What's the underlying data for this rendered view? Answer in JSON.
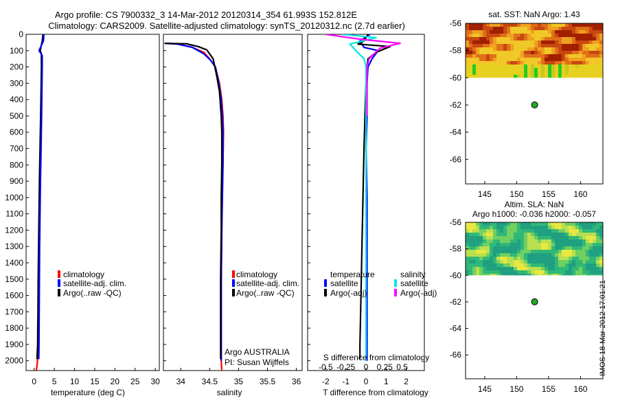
{
  "title": {
    "line1": "Argo profile: CS 7900332_3 14-Mar-2012 20120314_354 61.993S 152.812E",
    "line2": "Climatology: CARS2009. Satellite-adjusted climatology: synTS_20120312.nc (2.7d earlier)"
  },
  "depth_axis": {
    "ticks": [
      0,
      100,
      200,
      300,
      400,
      500,
      600,
      700,
      800,
      900,
      1000,
      1100,
      1200,
      1300,
      1400,
      1500,
      1600,
      1700,
      1800,
      1900,
      2000
    ],
    "ylim": [
      2060,
      0
    ]
  },
  "colors": {
    "climatology": "#ff0000",
    "satellite": "#0000ff",
    "argo": "#000000",
    "satellite_salinity": "#00e5e5",
    "argo_salinity": "#ff00ff",
    "map_marker": "#22aa22"
  },
  "chart_data": [
    {
      "type": "line",
      "name": "temperature",
      "xlabel": "temperature (deg C)",
      "xlim": [
        -2,
        31
      ],
      "xticks": [
        0,
        5,
        10,
        15,
        20,
        25,
        30
      ],
      "legend": [
        "climatology",
        "satellite-adj. clim.",
        "Argo(..raw -QC)"
      ],
      "series": [
        {
          "name": "climatology",
          "color": "#ff0000",
          "x": [
            1.0,
            0.9,
            0.8,
            0.75,
            0.7,
            0.65,
            0.6,
            0.55,
            0.5
          ],
          "y": [
            1950,
            1980,
            2000,
            2020,
            2030,
            2040,
            2050,
            2055,
            2060
          ]
        },
        {
          "name": "Argo(..raw -QC)",
          "color": "#000000",
          "x": [
            2.2,
            2.0,
            1.5,
            1.8,
            1.8,
            1.75,
            1.6,
            1.45,
            1.3,
            1.2,
            1.1,
            1.0,
            0.95,
            0.9,
            0.85,
            0.7
          ],
          "y": [
            0,
            40,
            100,
            120,
            200,
            300,
            500,
            700,
            900,
            1100,
            1300,
            1500,
            1700,
            1800,
            1900,
            1990
          ]
        },
        {
          "name": "satellite-adj. clim.",
          "color": "#0000ff",
          "x": [
            2.4,
            2.3,
            1.2,
            2.0,
            2.0,
            1.95,
            1.85,
            1.7,
            1.55,
            1.45,
            1.35,
            1.3,
            1.25,
            1.2,
            1.15
          ],
          "y": [
            0,
            40,
            100,
            130,
            200,
            300,
            500,
            700,
            900,
            1100,
            1300,
            1500,
            1700,
            1900,
            1990
          ]
        }
      ]
    },
    {
      "type": "line",
      "name": "salinity",
      "xlabel": "salinity",
      "xlim": [
        33.7,
        36.1
      ],
      "xticks": [
        34,
        34.5,
        35,
        35.5,
        36
      ],
      "legend": [
        "climatology",
        "satellite-adj. clim.",
        "Argo(..raw -QC)"
      ],
      "annotations": [
        "Argo AUSTRALIA",
        "PI: Susan Wijffels"
      ],
      "series": [
        {
          "name": "climatology",
          "color": "#ff0000",
          "x": [
            33.75,
            33.95,
            34.2,
            34.4,
            34.5,
            34.6,
            34.67,
            34.71,
            34.73,
            34.74,
            34.73,
            34.72,
            34.71,
            34.7,
            34.7,
            34.7,
            34.71
          ],
          "y": [
            55,
            60,
            80,
            110,
            150,
            200,
            300,
            400,
            500,
            600,
            800,
            1000,
            1200,
            1500,
            1800,
            2000,
            2060
          ]
        },
        {
          "name": "satellite-adj. clim.",
          "color": "#0000ff",
          "x": [
            33.72,
            33.95,
            34.2,
            34.4,
            34.52,
            34.6,
            34.66,
            34.7,
            34.72,
            34.73,
            34.73,
            34.72,
            34.71,
            34.7,
            34.7,
            34.7
          ],
          "y": [
            55,
            60,
            80,
            120,
            160,
            200,
            300,
            400,
            500,
            600,
            800,
            1000,
            1200,
            1500,
            1800,
            2000
          ]
        },
        {
          "name": "Argo(..raw -QC)",
          "color": "#000000",
          "x": [
            33.72,
            34.1,
            34.18,
            34.3,
            34.45,
            34.56,
            34.62,
            34.67,
            34.7,
            34.71,
            34.71,
            34.7,
            34.7,
            34.69,
            34.69
          ],
          "y": [
            55,
            58,
            65,
            75,
            95,
            150,
            250,
            350,
            500,
            600,
            800,
            1000,
            1200,
            1500,
            1990
          ]
        }
      ]
    },
    {
      "type": "line",
      "name": "difference",
      "xlabel": "T difference from climatology",
      "secondary_xlabel": "S difference from climatology",
      "xlim": [
        -2.9,
        2.9
      ],
      "xticks": [
        -2,
        -1,
        0,
        1,
        2
      ],
      "xticks_salinity": [
        "-0.5",
        "-0.25",
        "0",
        "0.25",
        "0.5"
      ],
      "legend_titles": [
        "temperature",
        "salinity"
      ],
      "legend": [
        "satellite",
        "Argo(-adj)",
        "satellite",
        "Argo(-adj)"
      ],
      "series": [
        {
          "name": "temperature satellite",
          "color": "#0000ff",
          "x": [
            0.2,
            -0.3,
            -0.1,
            0.6,
            0.3,
            0.1,
            0.05,
            0.05,
            0.05,
            0.0,
            0.05,
            0.05,
            0.05,
            0.05
          ],
          "y": [
            0,
            40,
            80,
            100,
            150,
            200,
            300,
            400,
            500,
            700,
            1000,
            1500,
            1900,
            2000
          ]
        },
        {
          "name": "temperature Argo(-adj)",
          "color": "#000000",
          "x": [
            0.1,
            -0.1,
            -0.4,
            1.2,
            0.5,
            0.1,
            0.05,
            0.0,
            -0.05,
            -0.1,
            -0.15,
            -0.2,
            -0.25,
            -0.3,
            -0.3
          ],
          "y": [
            0,
            40,
            60,
            75,
            110,
            150,
            200,
            300,
            500,
            700,
            1000,
            1300,
            1600,
            1900,
            1990
          ]
        },
        {
          "name": "salinity satellite",
          "color": "#00e5e5",
          "x": [
            -1.2,
            0.5,
            -0.8,
            -0.5,
            -0.1,
            0.0,
            0.0,
            0.0,
            0.0,
            0.0
          ],
          "y": [
            0,
            20,
            60,
            100,
            150,
            200,
            500,
            1000,
            1500,
            2000
          ]
        },
        {
          "name": "salinity Argo(-adj)",
          "color": "#ff00ff",
          "x": [
            -2.0,
            -0.3,
            1.7,
            0.7,
            0.4,
            0.15,
            0.05,
            0.05,
            0.05
          ],
          "y": [
            0,
            30,
            55,
            85,
            120,
            150,
            200,
            300,
            500
          ]
        }
      ]
    },
    {
      "type": "heatmap",
      "name": "sst-map",
      "title": "sat. SST: NaN Argo: 1.43",
      "xlim": [
        142,
        163.5
      ],
      "ylim": [
        -67.8,
        -56
      ],
      "xticks": [
        145,
        150,
        155,
        160
      ],
      "yticks": [
        -56,
        -58,
        -60,
        -62,
        -64,
        -66
      ],
      "data_lat_limit": -60,
      "marker": {
        "lon": 152.812,
        "lat": -61.993
      }
    },
    {
      "type": "heatmap",
      "name": "sla-map",
      "title": "Altim. SLA: NaN",
      "subtitle": "Argo h1000: -0.036 h2000: -0.057",
      "xlim": [
        142,
        163.5
      ],
      "ylim": [
        -67.8,
        -56
      ],
      "xticks": [
        145,
        150,
        155,
        160
      ],
      "yticks": [
        -56,
        -58,
        -60,
        -62,
        -64,
        -66
      ],
      "data_lat_limit": -60,
      "marker": {
        "lon": 152.812,
        "lat": -61.993
      }
    }
  ],
  "stamp": "IMOS 18-Mar-2012 17:01:21"
}
